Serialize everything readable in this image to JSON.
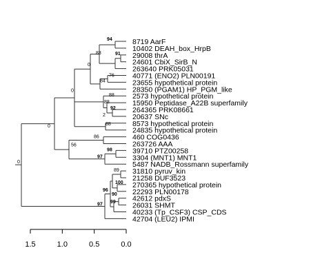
{
  "chart_data": {
    "type": "phylogenetic-tree",
    "orientation": "right-to-left (root on left, tips aligned right)",
    "x_axis": {
      "ticks": [
        "1.5",
        "1.0",
        "0.5",
        "0.0"
      ],
      "values": [
        1.5,
        1.0,
        0.5,
        0.0
      ]
    },
    "leaves": [
      "8719 AarF",
      "10402 DEAH_box_HrpB",
      "29008 thrA",
      "24601 CbiX_SirB_N",
      "263640 PRK05031",
      "40771 (ENO2) PLN00191",
      "23655 hypothetical protein",
      "28350 (PGAM1) HP_PGM_like",
      "2573 hypothetical protein",
      "15950 Peptidase_A22B superfamily",
      "264365 PRK08661",
      "20637 SNc",
      "8573 hypothetical protein",
      "24835 hypothetical protein",
      "460 COG0436",
      "263726 AAA",
      "39710 PTZ00258",
      "3304 (MNT1) MNT1",
      "5487 NADB_Rossmann superfamily",
      "31810 pyruv_kin",
      "21258 DUF3523",
      "270365 hypothetical protein",
      "22293 PLN00178",
      "42612 pdxS",
      "26031 SHMT",
      "40233 (Tp_CSF3) CSP_CDS",
      "42704 (LEU2) IPMI"
    ],
    "support_values": [
      {
        "label": "94",
        "bold": true
      },
      {
        "label": "83",
        "bold": false
      },
      {
        "label": "91",
        "bold": true
      },
      {
        "label": "0",
        "bold": false
      },
      {
        "label": "76",
        "bold": false
      },
      {
        "label": "84",
        "bold": false
      },
      {
        "label": "0",
        "bold": false
      },
      {
        "label": "88",
        "bold": false
      },
      {
        "label": "88",
        "bold": false
      },
      {
        "label": "92",
        "bold": true
      },
      {
        "label": "2",
        "bold": false
      },
      {
        "label": "88",
        "bold": false
      },
      {
        "label": "0",
        "bold": false
      },
      {
        "label": "86",
        "bold": false
      },
      {
        "label": "98",
        "bold": true
      },
      {
        "label": "97",
        "bold": true
      },
      {
        "label": "56",
        "bold": false
      },
      {
        "label": "89",
        "bold": false
      },
      {
        "label": "100",
        "bold": true
      },
      {
        "label": "90",
        "bold": true
      },
      {
        "label": "99",
        "bold": true
      },
      {
        "label": "96",
        "bold": true
      },
      {
        "label": "97",
        "bold": true
      },
      {
        "label": "0",
        "bold": false
      }
    ]
  }
}
